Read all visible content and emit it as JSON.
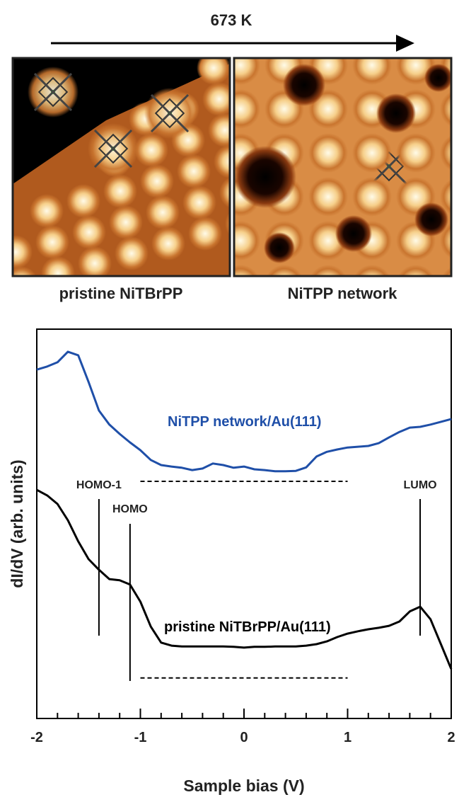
{
  "header": {
    "process": "673 K"
  },
  "panels": [
    {
      "caption": "pristine NiTBrPP"
    },
    {
      "caption": "NiTPP network"
    }
  ],
  "chart_data": {
    "type": "line",
    "x_label": "Sample bias (V)",
    "y_label": "dI/dV (arb. units)",
    "x": [
      -2,
      -1.9,
      -1.8,
      -1.7,
      -1.6,
      -1.5,
      -1.4,
      -1.3,
      -1.2,
      -1.1,
      -1,
      -0.9,
      -0.8,
      -0.7,
      -0.6,
      -0.5,
      -0.4,
      -0.3,
      -0.2,
      -0.1,
      0,
      0.1,
      0.2,
      0.3,
      0.4,
      0.5,
      0.6,
      0.7,
      0.8,
      0.9,
      1,
      1.1,
      1.2,
      1.3,
      1.4,
      1.5,
      1.6,
      1.7,
      1.8,
      1.9,
      2
    ],
    "series": [
      {
        "name": "NiTPP network/Au(111)",
        "color": "#1f4fa8",
        "values": [
          89.6,
          90.4,
          91.5,
          94.2,
          93.3,
          86.4,
          79.1,
          75.5,
          73.1,
          70.9,
          68.9,
          66.4,
          65.1,
          64.7,
          64.4,
          63.8,
          64.2,
          65.5,
          65.1,
          64.4,
          64.7,
          64,
          63.8,
          63.5,
          63.5,
          63.6,
          64.5,
          67.3,
          68.5,
          69.1,
          69.6,
          69.8,
          70,
          70.7,
          72.2,
          73.6,
          74.7,
          74.9,
          75.5,
          76.2,
          76.9
        ]
      },
      {
        "name": "pristine NiTBrPP/Au(111)",
        "color": "#000000",
        "values": [
          58.7,
          57.3,
          55.1,
          50.9,
          45.5,
          40.9,
          38.2,
          35.8,
          35.5,
          34.4,
          30.0,
          23.6,
          19.5,
          18.7,
          18.5,
          18.5,
          18.5,
          18.5,
          18.5,
          18.4,
          18.2,
          18.4,
          18.4,
          18.5,
          18.5,
          18.5,
          18.7,
          19.1,
          19.8,
          20.9,
          21.8,
          22.4,
          22.9,
          23.3,
          23.8,
          24.9,
          27.5,
          28.7,
          25.5,
          19.1,
          12.7
        ]
      }
    ],
    "reference_lines": [
      {
        "x": [
          -1,
          1
        ],
        "y": 60.9
      },
      {
        "x": [
          -1,
          1
        ],
        "y": 10.4
      }
    ],
    "annotations": [
      {
        "text": "HOMO-1",
        "x": -1.4
      },
      {
        "text": "HOMO",
        "x": -1.1
      },
      {
        "text": "LUMO",
        "x": 1.7
      }
    ],
    "xlim": [
      -2,
      2
    ],
    "ylim": [
      0,
      100
    ],
    "xticks": [
      -2,
      -1,
      0,
      1,
      2
    ],
    "xticks_minor": [
      -1.8,
      -1.6,
      -1.4,
      -1.2,
      -0.8,
      -0.6,
      -0.4,
      -0.2,
      0.2,
      0.4,
      0.6,
      0.8,
      1.2,
      1.4,
      1.6,
      1.8
    ]
  }
}
